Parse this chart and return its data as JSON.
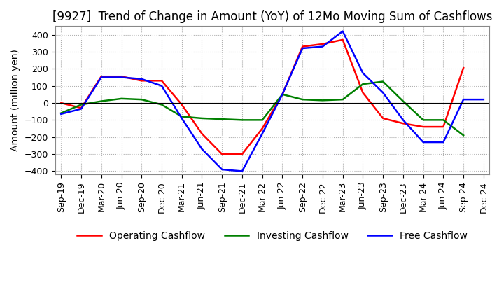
{
  "title": "[9927]  Trend of Change in Amount (YoY) of 12Mo Moving Sum of Cashflows",
  "ylabel": "Amount (million yen)",
  "ylim": [
    -420,
    450
  ],
  "yticks": [
    -400,
    -300,
    -200,
    -100,
    0,
    100,
    200,
    300,
    400
  ],
  "x_labels": [
    "Sep-19",
    "Dec-19",
    "Mar-20",
    "Jun-20",
    "Sep-20",
    "Dec-20",
    "Mar-21",
    "Jun-21",
    "Sep-21",
    "Dec-21",
    "Mar-22",
    "Jun-22",
    "Sep-22",
    "Dec-22",
    "Mar-23",
    "Jun-23",
    "Sep-23",
    "Dec-23",
    "Mar-24",
    "Jun-24",
    "Sep-24",
    "Dec-24"
  ],
  "operating": [
    0,
    -30,
    155,
    155,
    130,
    130,
    -10,
    -180,
    -300,
    -300,
    -150,
    50,
    330,
    345,
    370,
    60,
    -90,
    -120,
    -140,
    -140,
    205,
    null
  ],
  "investing": [
    -60,
    -10,
    10,
    25,
    20,
    -10,
    -80,
    -90,
    -95,
    -100,
    -100,
    50,
    20,
    15,
    20,
    110,
    125,
    10,
    -100,
    -100,
    -190,
    null
  ],
  "free": [
    -65,
    -35,
    150,
    150,
    140,
    100,
    -90,
    -270,
    -390,
    -400,
    -180,
    50,
    320,
    330,
    420,
    175,
    60,
    -100,
    -230,
    -230,
    20,
    20
  ],
  "op_color": "#ff0000",
  "inv_color": "#008000",
  "free_color": "#0000ff",
  "background_color": "#ffffff",
  "grid_color": "#b0b0b0",
  "title_fontsize": 12,
  "label_fontsize": 10,
  "tick_fontsize": 9,
  "legend_fontsize": 10
}
